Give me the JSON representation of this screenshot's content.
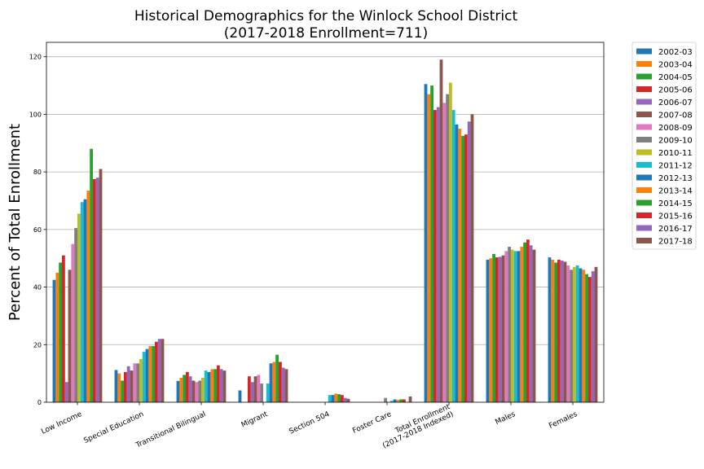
{
  "chart_data": {
    "type": "bar",
    "title": [
      "Historical Demographics for the Winlock School District",
      "(2017-2018 Enrollment=711)"
    ],
    "ylabel": "Percent of Total Enrollment",
    "xlabel": "",
    "ylim": [
      0,
      125
    ],
    "yticks": [
      0,
      20,
      40,
      60,
      80,
      100,
      120
    ],
    "grid": "horizontal",
    "legend_position": "outside-right",
    "categories": [
      [
        "Low Income"
      ],
      [
        "Special Education"
      ],
      [
        "Transitional Bilingual"
      ],
      [
        "Migrant"
      ],
      [
        "Section 504"
      ],
      [
        "Foster Care"
      ],
      [
        "Total Enrollment",
        "(2017-2018 Indexed)"
      ],
      [
        "Males"
      ],
      [
        "Females"
      ]
    ],
    "series": [
      {
        "name": "2002-03",
        "color": "#1f77b4",
        "values": [
          42.5,
          11.2,
          7.4,
          4.1,
          0,
          0,
          110.5,
          49.5,
          50.3
        ]
      },
      {
        "name": "2003-04",
        "color": "#ff7f0e",
        "values": [
          45,
          10,
          8.5,
          0,
          0,
          0,
          107,
          50,
          49.5
        ]
      },
      {
        "name": "2004-05",
        "color": "#2ca02c",
        "values": [
          48.5,
          7.5,
          9.5,
          0,
          0,
          0,
          110,
          51.5,
          48.5
        ]
      },
      {
        "name": "2005-06",
        "color": "#d62728",
        "values": [
          51,
          10.5,
          10.5,
          9,
          0,
          0,
          101.5,
          50.3,
          49.5
        ]
      },
      {
        "name": "2006-07",
        "color": "#9467bd",
        "values": [
          7,
          12.5,
          9,
          7,
          0,
          0,
          102.5,
          50.5,
          49.2
        ]
      },
      {
        "name": "2007-08",
        "color": "#8c564b",
        "values": [
          46,
          11,
          7.5,
          9,
          0,
          0,
          119,
          51,
          48.8
        ]
      },
      {
        "name": "2008-09",
        "color": "#e377c2",
        "values": [
          55,
          13.5,
          7,
          9.5,
          0,
          0,
          104,
          52.5,
          47.5
        ]
      },
      {
        "name": "2009-10",
        "color": "#7f7f7f",
        "values": [
          60.5,
          13.5,
          7.5,
          6.5,
          0,
          1.5,
          107,
          54,
          46
        ]
      },
      {
        "name": "2010-11",
        "color": "#bcbd22",
        "values": [
          65.5,
          15,
          8.5,
          0,
          0,
          0,
          111,
          53,
          47
        ]
      },
      {
        "name": "2011-12",
        "color": "#17becf",
        "values": [
          69.5,
          17.5,
          11,
          6.5,
          2.5,
          0.5,
          101.5,
          52.5,
          47.5
        ]
      },
      {
        "name": "2012-13",
        "color": "#1f77b4",
        "values": [
          70.5,
          18.5,
          10.5,
          13.5,
          2.5,
          1,
          96.5,
          52.5,
          46.5
        ]
      },
      {
        "name": "2013-14",
        "color": "#ff7f0e",
        "values": [
          73.5,
          19.5,
          11.5,
          14,
          3,
          0.8,
          95,
          54,
          46
        ]
      },
      {
        "name": "2014-15",
        "color": "#2ca02c",
        "values": [
          88,
          19.5,
          11.5,
          16.5,
          2.8,
          1,
          92.5,
          55.5,
          44.5
        ]
      },
      {
        "name": "2015-16",
        "color": "#d62728",
        "values": [
          77.5,
          21,
          12.8,
          14,
          2.5,
          1,
          93,
          56.5,
          43.5
        ]
      },
      {
        "name": "2016-17",
        "color": "#9467bd",
        "values": [
          78,
          22,
          11.5,
          12,
          1.5,
          0,
          97.5,
          54.5,
          45.5
        ]
      },
      {
        "name": "2017-18",
        "color": "#8c564b",
        "values": [
          81,
          22,
          11,
          11.5,
          1.2,
          2,
          100,
          53,
          47
        ]
      }
    ]
  }
}
